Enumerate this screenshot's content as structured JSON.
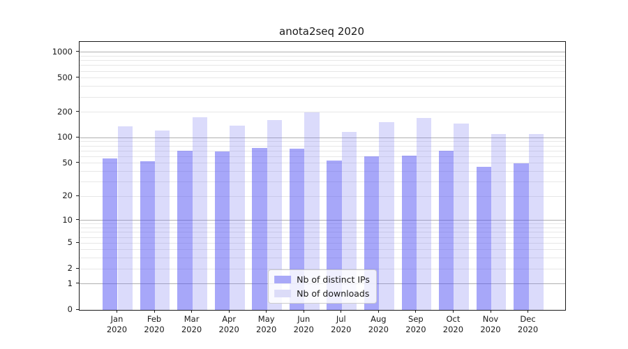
{
  "title": "anota2seq 2020",
  "legend": {
    "items": [
      {
        "label": "Nb of distinct IPs",
        "color": "#a9a9f8"
      },
      {
        "label": "Nb of downloads",
        "color": "#dcdcf8"
      }
    ],
    "position": "lower center"
  },
  "chart_data": {
    "type": "bar",
    "title": "anota2seq 2020",
    "categories": [
      "Jan 2020",
      "Feb 2020",
      "Mar 2020",
      "Apr 2020",
      "May 2020",
      "Jun 2020",
      "Jul 2020",
      "Aug 2020",
      "Sep 2020",
      "Oct 2020",
      "Nov 2020",
      "Dec 2020"
    ],
    "x_tick_labels": [
      {
        "month": "Jan",
        "year": "2020"
      },
      {
        "month": "Feb",
        "year": "2020"
      },
      {
        "month": "Mar",
        "year": "2020"
      },
      {
        "month": "Apr",
        "year": "2020"
      },
      {
        "month": "May",
        "year": "2020"
      },
      {
        "month": "Jun",
        "year": "2020"
      },
      {
        "month": "Jul",
        "year": "2020"
      },
      {
        "month": "Aug",
        "year": "2020"
      },
      {
        "month": "Sep",
        "year": "2020"
      },
      {
        "month": "Oct",
        "year": "2020"
      },
      {
        "month": "Nov",
        "year": "2020"
      },
      {
        "month": "Dec",
        "year": "2020"
      }
    ],
    "series": [
      {
        "name": "Nb of distinct IPs",
        "values": [
          57,
          53,
          70,
          69,
          76,
          75,
          54,
          60,
          62,
          70,
          45,
          50
        ],
        "fill": "rgba(80,80,244,0.50)"
      },
      {
        "name": "Nb of downloads",
        "values": [
          137,
          122,
          175,
          138,
          162,
          199,
          117,
          153,
          170,
          146,
          111,
          110
        ],
        "fill": "rgba(125,125,240,0.28)"
      }
    ],
    "yscale": "log1p",
    "ylim": [
      0,
      1320
    ],
    "y_ticks": [
      0,
      1,
      2,
      5,
      10,
      20,
      50,
      100,
      200,
      500,
      1000
    ],
    "y_major_gridlines": [
      1,
      10,
      100,
      1000
    ],
    "y_minor_gridlines": [
      2,
      3,
      4,
      5,
      6,
      7,
      8,
      9,
      20,
      30,
      40,
      50,
      60,
      70,
      80,
      90,
      200,
      300,
      400,
      500,
      600,
      700,
      800,
      900
    ],
    "grid": true,
    "legend_position": "lower center"
  },
  "colors": {
    "major_grid": "#b0b0b0",
    "minor_grid": "#e7e7e7",
    "spine": "#1a1a1a",
    "text": "#1a1a1a",
    "background": "#ffffff"
  }
}
